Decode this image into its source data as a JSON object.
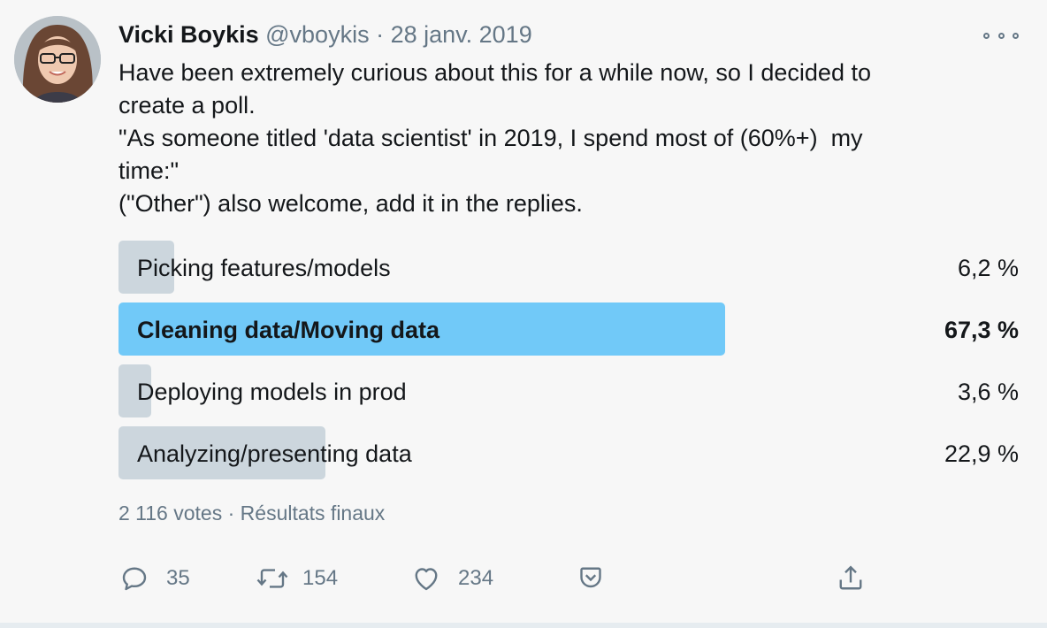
{
  "tweet": {
    "author_name": "Vicki Boykis",
    "author_handle": "@vboykis",
    "date": "28 janv. 2019",
    "text_lines": [
      "Have been extremely curious about this for a while now, so I decided to",
      "create a poll.",
      "\"As someone titled 'data scientist' in 2019, I spend most of (60%+)  my",
      "time:\"",
      "(\"Other\") also welcome, add it in the replies."
    ]
  },
  "poll": {
    "options": [
      {
        "label": "Picking features/models",
        "percent_text": "6,2 %",
        "percent": 6.2
      },
      {
        "label": "Cleaning data/Moving data",
        "percent_text": "67,3 %",
        "percent": 67.3
      },
      {
        "label": "Deploying models in prod",
        "percent_text": "3,6 %",
        "percent": 3.6
      },
      {
        "label": "Analyzing/presenting data",
        "percent_text": "22,9 %",
        "percent": 22.9
      }
    ],
    "votes": "2 116 votes",
    "separator": "·",
    "status": "Résultats finaux"
  },
  "actions": {
    "replies": "35",
    "retweets": "154",
    "likes": "234"
  },
  "colors": {
    "winner_bar": "#71c9f8",
    "bar": "#ccd6dd",
    "muted_text": "#657786",
    "background": "#f7f7f7"
  },
  "icons": [
    "avatar-photo",
    "more-icon",
    "reply-icon",
    "retweet-icon",
    "like-icon",
    "save-icon",
    "share-icon"
  ]
}
